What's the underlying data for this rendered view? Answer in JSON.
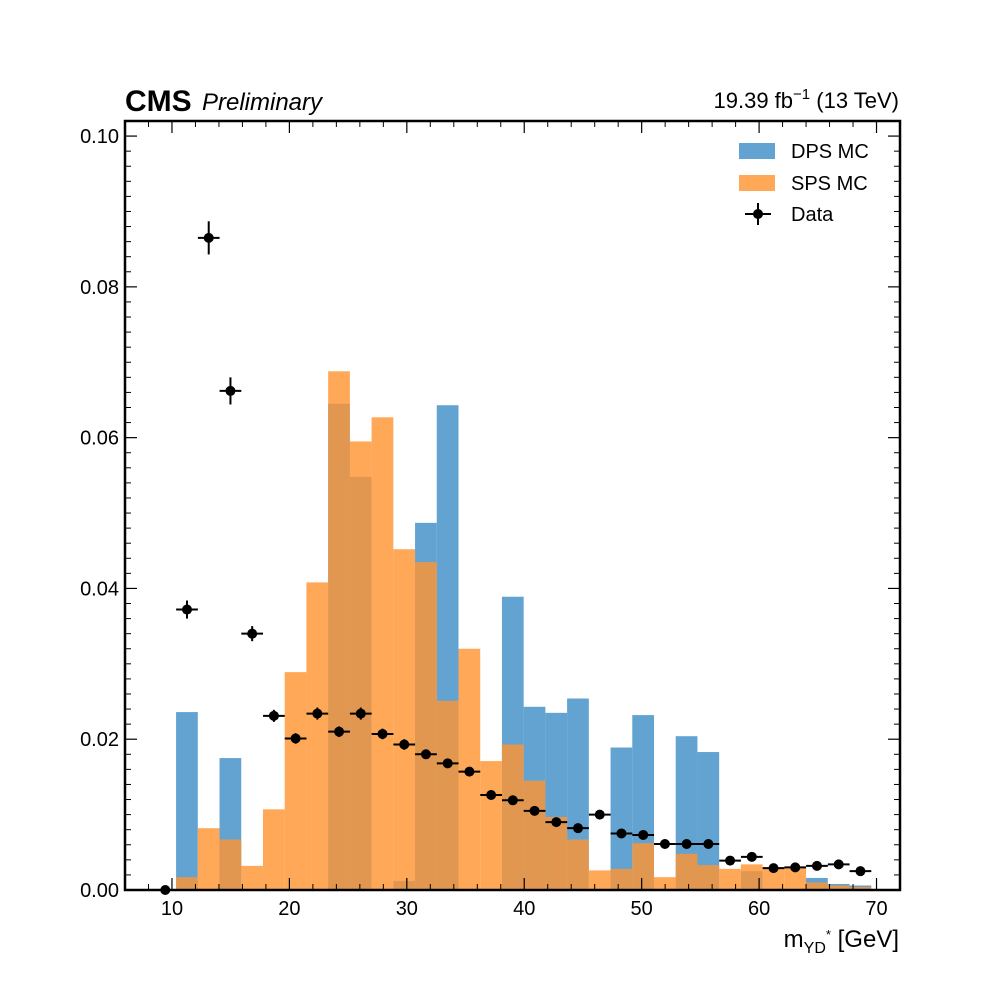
{
  "header": {
    "experiment": "CMS",
    "status": "Preliminary",
    "lumi_value": "19.39 fb",
    "lumi_exponent": "−1",
    "energy": " (13 TeV)"
  },
  "axes": {
    "xlabel_main": "m",
    "xlabel_sub": "YD",
    "xlabel_sup": "*",
    "xlabel_unit": " [GeV]"
  },
  "colors": {
    "dps": "#3f8fc8",
    "sps": "#ff9533",
    "data": "#000000"
  },
  "chart_data": {
    "type": "bar",
    "xlim": [
      6,
      72
    ],
    "ylim": [
      0,
      0.102
    ],
    "x_ticks": [
      10,
      20,
      30,
      40,
      50,
      60,
      70
    ],
    "y_ticks": [
      0.0,
      0.02,
      0.04,
      0.06,
      0.08,
      0.1
    ],
    "y_tick_labels": [
      "0.00",
      "0.02",
      "0.04",
      "0.06",
      "0.08",
      "0.10"
    ],
    "legend_position": "top-right",
    "legend": [
      "DPS MC",
      "SPS MC",
      "Data"
    ],
    "bin_edges": [
      8.5,
      10.35,
      12.2,
      14.05,
      15.9,
      17.75,
      19.6,
      21.45,
      23.3,
      25.15,
      27.0,
      28.85,
      30.7,
      32.55,
      34.4,
      36.25,
      38.1,
      39.95,
      41.8,
      43.65,
      45.5,
      47.35,
      49.2,
      51.05,
      52.9,
      54.75,
      56.6,
      58.45,
      60.3,
      62.15,
      64.0,
      65.85,
      67.7,
      69.55
    ],
    "series": [
      {
        "name": "DPS MC",
        "style": "filled-step",
        "values": [
          0.0,
          0.0236,
          0.0,
          0.0175,
          0.0,
          0.0,
          0.0,
          0.0,
          0.0645,
          0.0548,
          0.0,
          0.0012,
          0.0487,
          0.0643,
          0.0,
          0.0,
          0.0389,
          0.0243,
          0.0235,
          0.0254,
          0.0,
          0.0189,
          0.0232,
          0.0,
          0.0204,
          0.0183,
          0.0,
          0.0025,
          0.0,
          0.0,
          0.0016,
          0.0008,
          0.0006
        ]
      },
      {
        "name": "SPS MC",
        "style": "filled-step",
        "values": [
          0.0,
          0.0017,
          0.0082,
          0.0067,
          0.0032,
          0.0107,
          0.0289,
          0.0408,
          0.0688,
          0.0595,
          0.0627,
          0.0452,
          0.0435,
          0.0251,
          0.032,
          0.0171,
          0.0193,
          0.0145,
          0.0097,
          0.0067,
          0.0026,
          0.0028,
          0.0062,
          0.0017,
          0.0048,
          0.0033,
          0.0028,
          0.0034,
          0.0029,
          0.003,
          0.001,
          0.0006,
          0.0004
        ]
      },
      {
        "name": "Data",
        "style": "errorbar",
        "x": [
          9.43,
          11.28,
          13.13,
          14.98,
          16.83,
          18.68,
          20.53,
          22.38,
          24.23,
          26.08,
          27.93,
          29.78,
          31.63,
          33.48,
          35.33,
          37.18,
          39.03,
          40.88,
          42.73,
          44.58,
          46.43,
          48.28,
          50.13,
          51.98,
          53.83,
          55.68,
          57.53,
          59.38,
          61.23,
          63.08,
          64.93,
          66.78,
          68.63
        ],
        "y": [
          0.0,
          0.0372,
          0.0865,
          0.0662,
          0.034,
          0.0231,
          0.0201,
          0.0234,
          0.021,
          0.0234,
          0.0207,
          0.0193,
          0.018,
          0.0168,
          0.0157,
          0.0126,
          0.0119,
          0.0105,
          0.009,
          0.0082,
          0.01,
          0.0075,
          0.0073,
          0.0061,
          0.0061,
          0.0061,
          0.0039,
          0.0044,
          0.0029,
          0.003,
          0.0032,
          0.0034,
          0.0025
        ],
        "yerr": [
          0.0,
          0.0012,
          0.0022,
          0.0018,
          0.001,
          0.0008,
          0.0007,
          0.0008,
          0.0007,
          0.0008,
          0.0007,
          0.0007,
          0.0006,
          0.0006,
          0.0006,
          0.0005,
          0.0005,
          0.0004,
          0.0004,
          0.0004,
          0.0004,
          0.0004,
          0.0003,
          0.0003,
          0.0003,
          0.0003,
          0.0003,
          0.0003,
          0.0002,
          0.0002,
          0.0002,
          0.0002,
          0.0002
        ]
      }
    ]
  }
}
